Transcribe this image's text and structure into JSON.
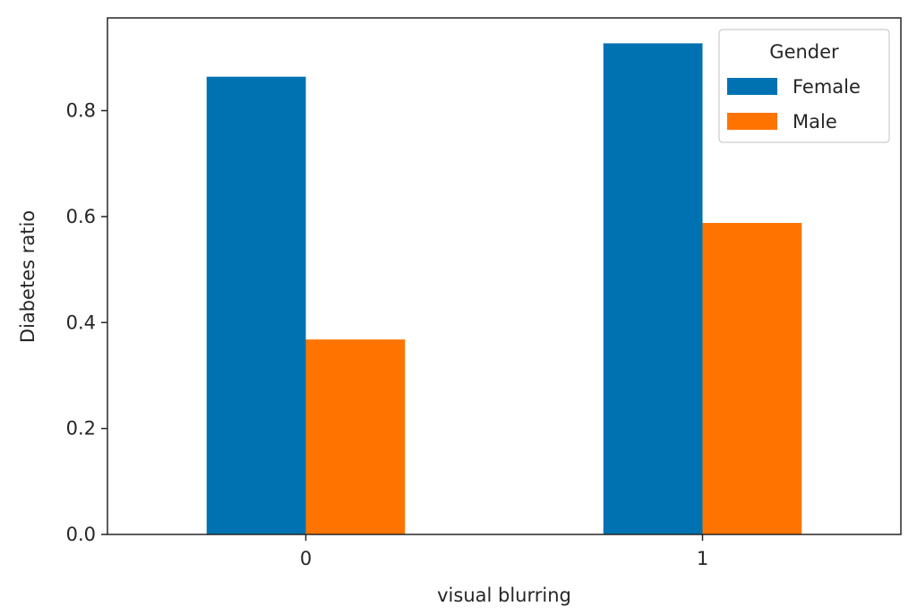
{
  "chart_data": {
    "type": "bar",
    "categories": [
      "0",
      "1"
    ],
    "series": [
      {
        "name": "Female",
        "values": [
          0.864,
          0.927
        ],
        "color": "#0072b2"
      },
      {
        "name": "Male",
        "values": [
          0.368,
          0.588
        ],
        "color": "#ff7400"
      }
    ],
    "xlabel": "visual blurring",
    "ylabel": "Diabetes ratio",
    "ylim": [
      0,
      0.975
    ],
    "yticks": [
      "0.0",
      "0.2",
      "0.4",
      "0.6",
      "0.8"
    ],
    "legend": {
      "title": "Gender",
      "position": "top-right"
    },
    "grid": false
  }
}
